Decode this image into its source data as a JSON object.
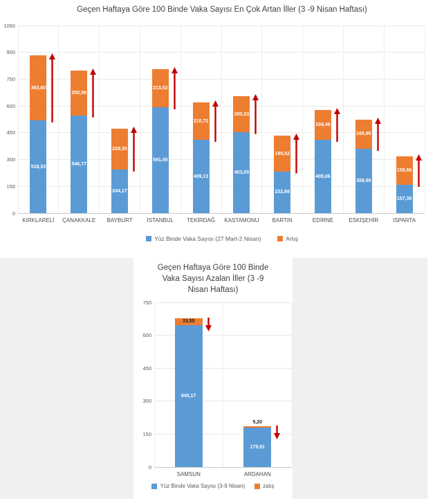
{
  "page": {
    "background": "#ffffff",
    "band_color": "#f0f0f0",
    "accent_blue": "#5B9BD5",
    "accent_orange": "#ED7D31",
    "arrow_red": "#C00000"
  },
  "chart_data": [
    {
      "type": "bar",
      "variant": "stacked",
      "title": "Geçen Haftaya Göre 100 Binde Vaka Sayısı En Çok Artan İller (3  -9 Nisan Haftası)",
      "categories": [
        "KIRKLARELİ",
        "ÇANAKKALE",
        "BAYBURT",
        "İSTANBUL",
        "TEKİRDAĞ",
        "KASTAMONU",
        "BARTIN",
        "EDİRNE",
        "ESKİŞEHİR",
        "ISPARTA"
      ],
      "series": [
        {
          "name": "Yüz Binde Vaka Sayısı (27 Mart-2 Nisan)",
          "color": "#5B9BD5",
          "label_color": "#ffffff",
          "values": [
            518.33,
            546.77,
            244.17,
            591.45,
            409.13,
            453.0,
            232.69,
            409.06,
            358.9,
            157.39
          ],
          "labels": [
            "518,33",
            "546,77",
            "244,17",
            "591,45",
            "409,13",
            "453,00",
            "232,69",
            "409,06",
            "358,90",
            "157,39"
          ]
        },
        {
          "name": "Artış",
          "color": "#ED7D31",
          "label_color": "#ffffff",
          "values": [
            363.8,
            250.58,
            228.3,
            213.52,
            210.72,
            200.33,
            199.52,
            168.48,
            165.95,
            159.66
          ],
          "labels": [
            "363,80",
            "250,58",
            "228,30",
            "213,52",
            "210,72",
            "200,33",
            "199,52",
            "168,48",
            "165,95",
            "159,66"
          ]
        }
      ],
      "y_ticks": [
        0,
        150,
        300,
        450,
        600,
        750,
        900,
        1050
      ],
      "ylim": [
        0,
        1050
      ],
      "grid": true,
      "legend_position": "bottom",
      "arrow_direction": "up",
      "arrow_color": "#C00000"
    },
    {
      "type": "bar",
      "variant": "stacked",
      "title": "Geçen Haftaya Göre 100 Binde Vaka Sayısı Azalan İller (3 -9 Nisan Haftası)",
      "title_lines": [
        "Geçen Haftaya Göre 100 Binde",
        "Vaka Sayısı Azalan İller (3 -9",
        "Nisan Haftası)"
      ],
      "categories": [
        "SAMSUN",
        "ARDAHAN"
      ],
      "series": [
        {
          "name": "Yüz Binde Vaka Sayısı (3-9 Nisan)",
          "color": "#5B9BD5",
          "label_color": "#ffffff",
          "values": [
            645.17,
            179.91
          ],
          "labels": [
            "645,17",
            "179,91"
          ]
        },
        {
          "name": "zalış",
          "color": "#ED7D31",
          "label_color": "#1f1f1f",
          "values": [
            33.55,
            5.2
          ],
          "labels": [
            "33,55",
            "5,20"
          ]
        }
      ],
      "y_ticks": [
        0,
        150,
        300,
        450,
        600,
        750
      ],
      "ylim": [
        0,
        750
      ],
      "grid": true,
      "legend_position": "bottom",
      "arrow_direction": "down",
      "arrow_color": "#C00000"
    }
  ]
}
